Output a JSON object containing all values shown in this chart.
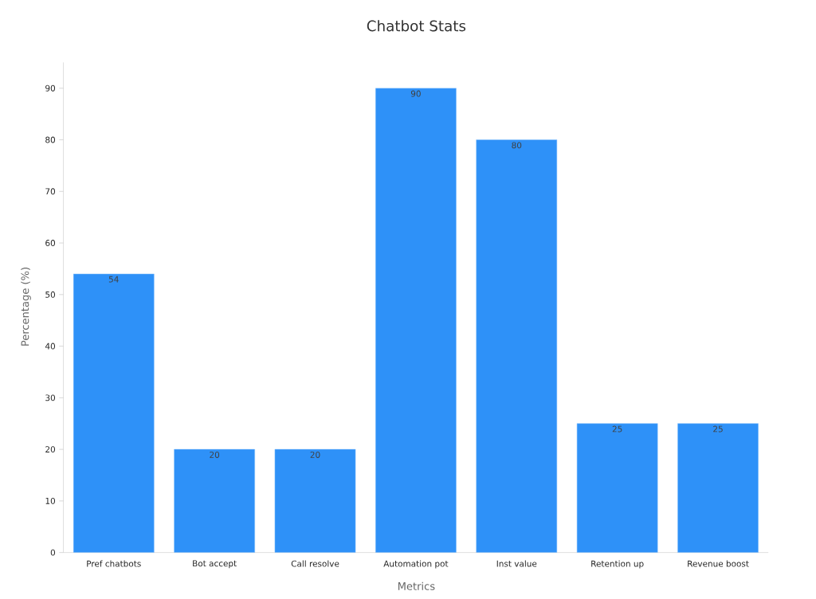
{
  "chart_data": {
    "type": "bar",
    "title": "Chatbot Stats",
    "xlabel": "Metrics",
    "ylabel": "Percentage (%)",
    "categories": [
      "Pref chatbots",
      "Bot accept",
      "Call resolve",
      "Automation pot",
      "Inst value",
      "Retention up",
      "Revenue boost"
    ],
    "values": [
      54,
      20,
      20,
      90,
      80,
      25,
      25
    ],
    "color": "#2e91f8",
    "ylim": [
      0,
      95
    ],
    "yticks": [
      0,
      10,
      20,
      30,
      40,
      50,
      60,
      70,
      80,
      90
    ],
    "data_labels": true
  }
}
